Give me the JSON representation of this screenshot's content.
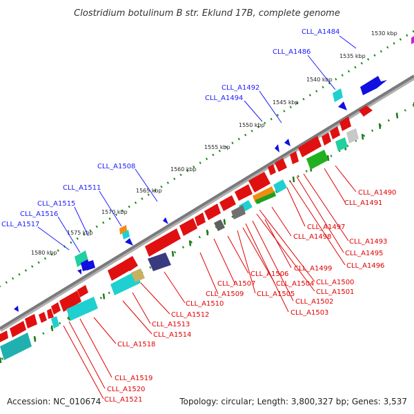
{
  "title": "Clostridium botulinum B str. Eklund 17B, complete genome",
  "footer": {
    "accession": "Accession: NC_010674",
    "summary": "Topology: circular; Length: 3,800,327 bp; Genes: 3,537"
  },
  "colors": {
    "top_strand_label": "#1a1aff",
    "bottom_strand_label": "#e00000",
    "backbone": "#808080",
    "tick_dots_top": "#1a8a1a",
    "tick_dots_bottom": "#1a8a1a"
  },
  "ticks": [
    {
      "label": "1530 kbp"
    },
    {
      "label": "1535 kbp"
    },
    {
      "label": "1540 kbp"
    },
    {
      "label": "1545 kbp"
    },
    {
      "label": "1550 kbp"
    },
    {
      "label": "1555 kbp"
    },
    {
      "label": "1560 kbp"
    },
    {
      "label": "1565 kbp"
    },
    {
      "label": "1570 kbp"
    },
    {
      "label": "1575 kbp"
    },
    {
      "label": "1580 kbp"
    }
  ],
  "top_labels": [
    {
      "text": "CLL_A1484"
    },
    {
      "text": "CLL_A1486"
    },
    {
      "text": "CLL_A1492"
    },
    {
      "text": "CLL_A1494"
    },
    {
      "text": "CLL_A1508"
    },
    {
      "text": "CLL_A1511"
    },
    {
      "text": "CLL_A1515"
    },
    {
      "text": "CLL_A1516"
    },
    {
      "text": "CLL_A1517"
    }
  ],
  "bottom_labels": [
    {
      "text": "CLL_A1490"
    },
    {
      "text": "CLL_A1491"
    },
    {
      "text": "CLL_A1493"
    },
    {
      "text": "CLL_A1495"
    },
    {
      "text": "CLL_A1496"
    },
    {
      "text": "CLL_A1497"
    },
    {
      "text": "CLL_A1498"
    },
    {
      "text": "CLL_A1499"
    },
    {
      "text": "CLL_A1500"
    },
    {
      "text": "CLL_A1501"
    },
    {
      "text": "CLL_A1502"
    },
    {
      "text": "CLL_A1503"
    },
    {
      "text": "CLL_A1504"
    },
    {
      "text": "CLL_A1505"
    },
    {
      "text": "CLL_A1506"
    },
    {
      "text": "CLL_A1507"
    },
    {
      "text": "CLL_A1509"
    },
    {
      "text": "CLL_A1510"
    },
    {
      "text": "CLL_A1512"
    },
    {
      "text": "CLL_A1513"
    },
    {
      "text": "CLL_A1514"
    },
    {
      "text": "CLL_A1518"
    },
    {
      "text": "CLL_A1519"
    },
    {
      "text": "CLL_A1520"
    },
    {
      "text": "CLL_A1521"
    }
  ]
}
